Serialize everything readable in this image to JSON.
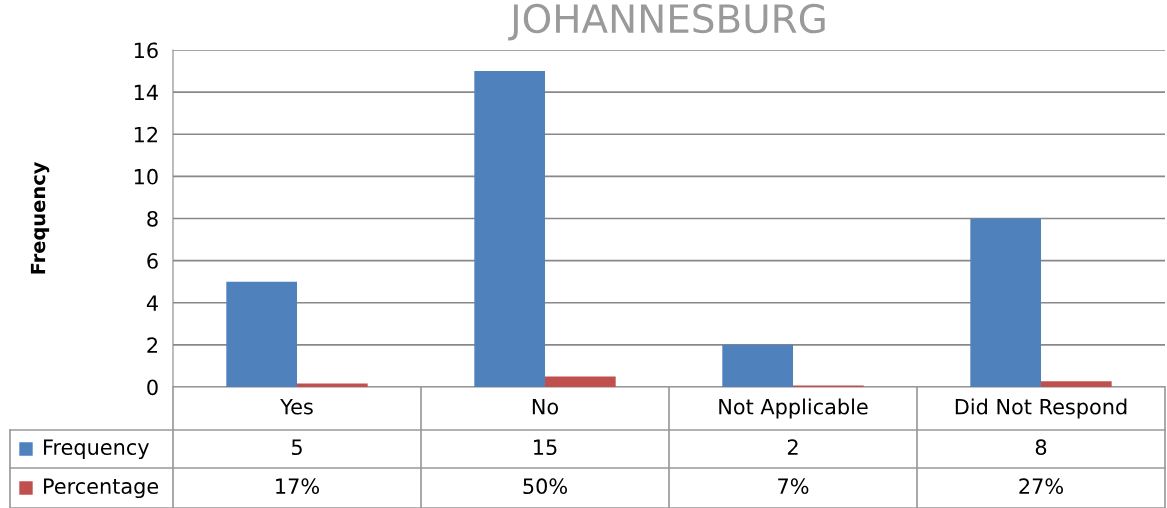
{
  "chart_data": {
    "type": "bar",
    "title": "JOHANNESBURG",
    "ylabel": "Frequency",
    "categories": [
      "Yes",
      "No",
      "Not Applicable",
      "Did Not Respond"
    ],
    "series": [
      {
        "name": "Frequency",
        "color": "#4f81bd",
        "values": [
          5,
          15,
          2,
          8
        ],
        "value_labels": [
          "5",
          "15",
          "2",
          "8"
        ]
      },
      {
        "name": "Percentage",
        "color": "#c0504d",
        "values": [
          0.17,
          0.5,
          0.07,
          0.27
        ],
        "value_labels": [
          "17%",
          "50%",
          "7%",
          "27%"
        ]
      }
    ],
    "ylim": [
      0,
      16
    ],
    "yticks": [
      0,
      2,
      4,
      6,
      8,
      10,
      12,
      14,
      16
    ],
    "grid": "y",
    "legend": "bottom"
  }
}
